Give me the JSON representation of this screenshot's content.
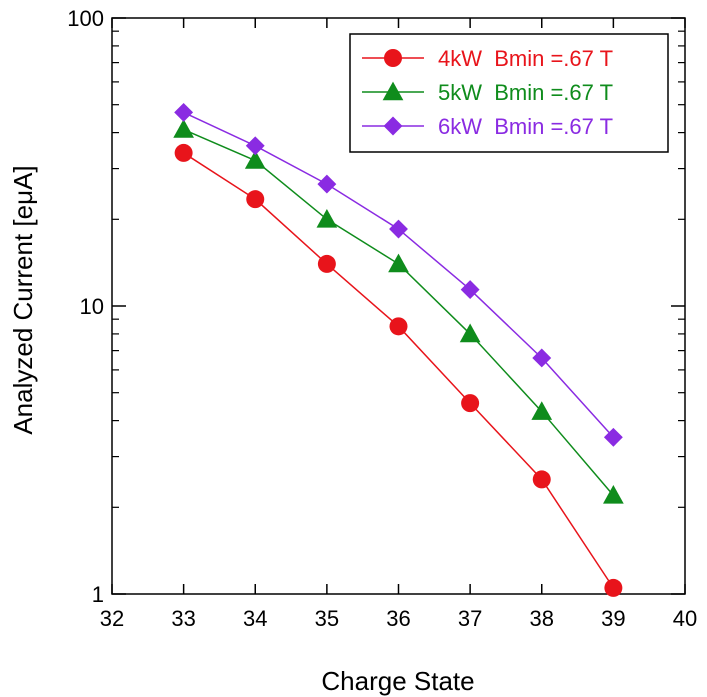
{
  "chart_data": {
    "type": "line",
    "title": "",
    "xlabel": "Charge State",
    "ylabel": "Analyzed Current [eμA]",
    "xlim": [
      32,
      40
    ],
    "ylim": [
      1,
      100
    ],
    "yscale": "log",
    "grid": false,
    "legend_position": "top-right",
    "x_ticks": [
      32,
      33,
      34,
      35,
      36,
      37,
      38,
      39,
      40
    ],
    "x_tick_labels": [
      "32",
      "33",
      "34",
      "35",
      "36",
      "37",
      "38",
      "39",
      "40"
    ],
    "y_ticks": [
      1,
      10,
      100
    ],
    "y_tick_labels": [
      "1",
      "10",
      "100"
    ],
    "series": [
      {
        "name": "4kW  Bmin =.67 T",
        "marker": "circle",
        "color": "#e8141b",
        "x": [
          33,
          34,
          35,
          36,
          37,
          38,
          39
        ],
        "y": [
          34,
          23.5,
          14,
          8.5,
          4.6,
          2.5,
          1.05
        ]
      },
      {
        "name": "5kW  Bmin =.67 T",
        "marker": "triangle",
        "color": "#0f8c1c",
        "x": [
          33,
          34,
          35,
          36,
          37,
          38,
          39
        ],
        "y": [
          41,
          32,
          20,
          14,
          8,
          4.3,
          2.2
        ]
      },
      {
        "name": "6kW  Bmin =.67 T",
        "marker": "diamond",
        "color": "#8a2be2",
        "x": [
          33,
          34,
          35,
          36,
          37,
          38,
          39
        ],
        "y": [
          47,
          36,
          26.5,
          18.5,
          11.4,
          6.6,
          3.5
        ]
      }
    ]
  }
}
